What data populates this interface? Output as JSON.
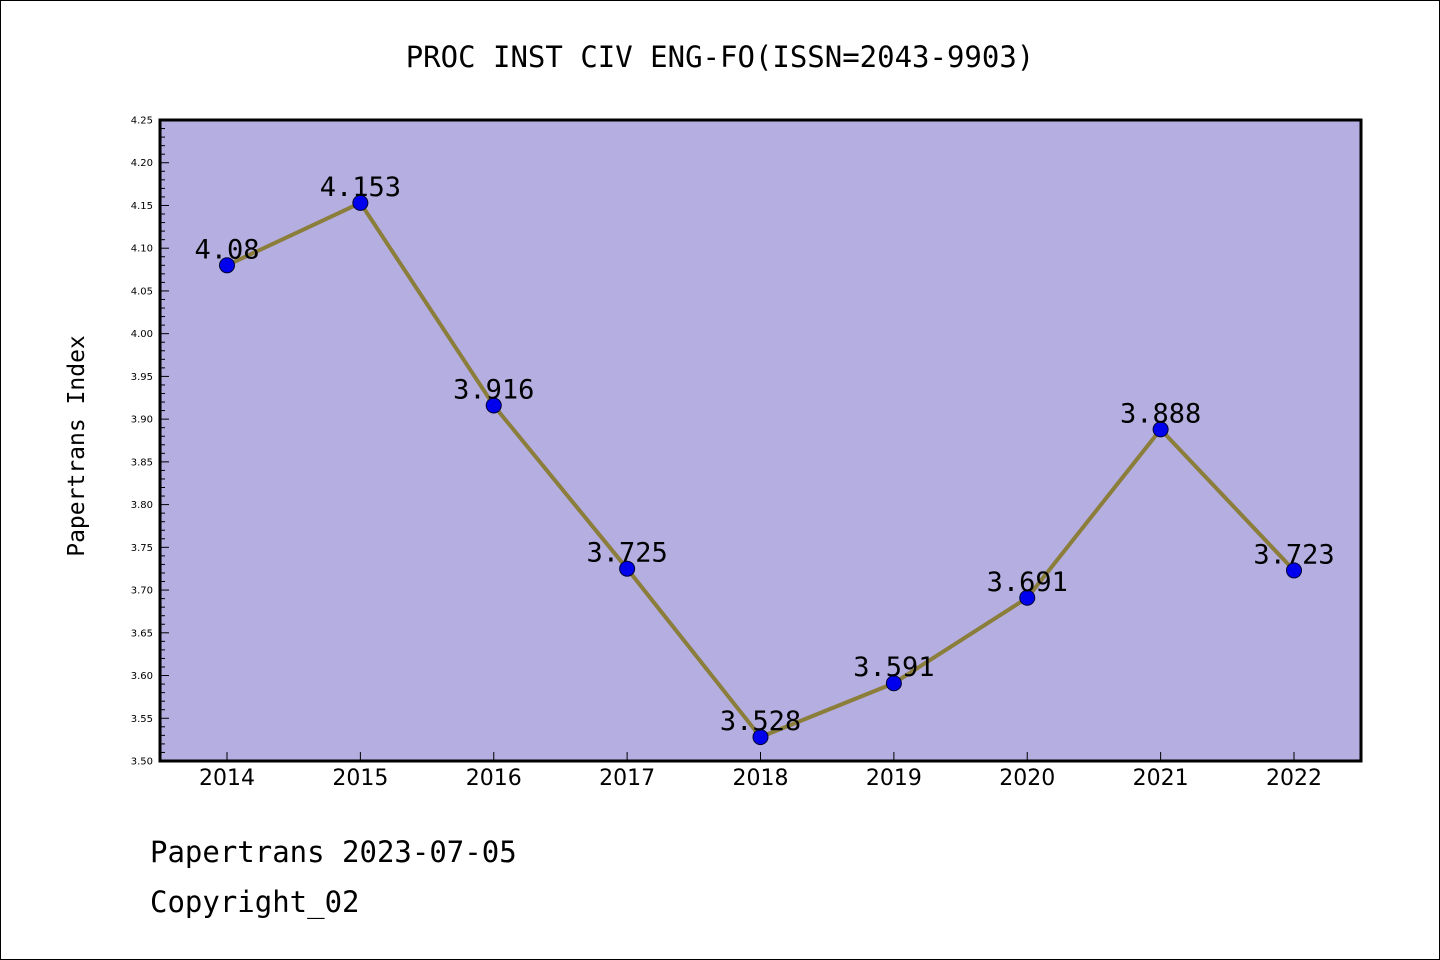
{
  "chart_data": {
    "type": "line",
    "title": "PROC INST CIV ENG-FO(ISSN=2043-9903)",
    "ylabel": "Papertrans Index",
    "xlabel": "",
    "categories": [
      "2014",
      "2015",
      "2016",
      "2017",
      "2018",
      "2019",
      "2020",
      "2021",
      "2022"
    ],
    "series": [
      {
        "values": [
          4.08,
          4.153,
          3.916,
          3.725,
          3.528,
          3.591,
          3.691,
          3.888,
          3.723
        ],
        "labels": [
          "4.08",
          "4.153",
          "3.916",
          "3.725",
          "3.528",
          "3.591",
          "3.691",
          "3.888",
          "3.723"
        ]
      }
    ],
    "ylim": [
      3.5,
      4.25
    ],
    "yticks": [
      "3.50",
      "3.55",
      "3.60",
      "3.65",
      "3.70",
      "3.75",
      "3.80",
      "3.85",
      "3.90",
      "3.95",
      "4.00",
      "4.05",
      "4.10",
      "4.15",
      "4.20",
      "4.25"
    ],
    "grid": false,
    "colors": {
      "plot_background": "#b4aee1",
      "line": "#8b7d3a",
      "marker": "#0000ee",
      "axis": "#000000"
    }
  },
  "footer": {
    "line1": "Papertrans 2023-07-05",
    "line2": "Copyright_02"
  }
}
